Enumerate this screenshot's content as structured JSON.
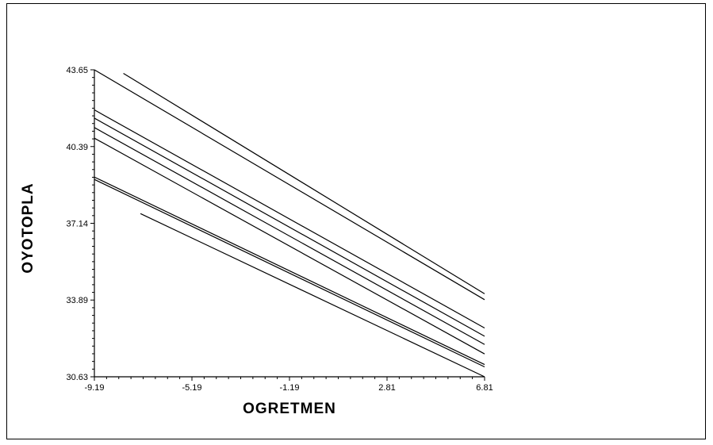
{
  "chart_data": {
    "type": "line",
    "title": "",
    "xlabel": "OGRETMEN",
    "ylabel": "OYOTOPLA",
    "xlim": [
      -9.19,
      6.81
    ],
    "ylim": [
      30.63,
      43.65
    ],
    "x_ticks": [
      {
        "value": -9.19,
        "label": "-9.19"
      },
      {
        "value": -5.19,
        "label": "-5.19"
      },
      {
        "value": -1.19,
        "label": "-1.19"
      },
      {
        "value": 2.81,
        "label": "2.81"
      },
      {
        "value": 6.81,
        "label": "6.81"
      }
    ],
    "y_ticks": [
      {
        "value": 30.63,
        "label": "30.63"
      },
      {
        "value": 33.89,
        "label": "33.89"
      },
      {
        "value": 37.14,
        "label": "37.14"
      },
      {
        "value": 40.39,
        "label": "40.39"
      },
      {
        "value": 43.65,
        "label": "43.65"
      }
    ],
    "grid": false,
    "legend": "none",
    "line_color": "#000000",
    "series": [
      {
        "x": [
          -9.19,
          6.81
        ],
        "y": [
          43.65,
          33.9
        ]
      },
      {
        "x": [
          -8.0,
          6.81
        ],
        "y": [
          43.5,
          34.15
        ]
      },
      {
        "x": [
          -9.19,
          6.81
        ],
        "y": [
          41.95,
          32.7
        ]
      },
      {
        "x": [
          -9.19,
          6.81
        ],
        "y": [
          41.6,
          32.35
        ]
      },
      {
        "x": [
          -9.19,
          6.81
        ],
        "y": [
          41.2,
          32.0
        ]
      },
      {
        "x": [
          -9.19,
          6.81
        ],
        "y": [
          40.75,
          31.6
        ]
      },
      {
        "x": [
          -9.19,
          6.81
        ],
        "y": [
          39.1,
          31.15
        ]
      },
      {
        "x": [
          -9.19,
          6.81
        ],
        "y": [
          39.0,
          31.05
        ]
      },
      {
        "x": [
          -7.3,
          6.81
        ],
        "y": [
          37.55,
          30.63
        ]
      }
    ]
  }
}
